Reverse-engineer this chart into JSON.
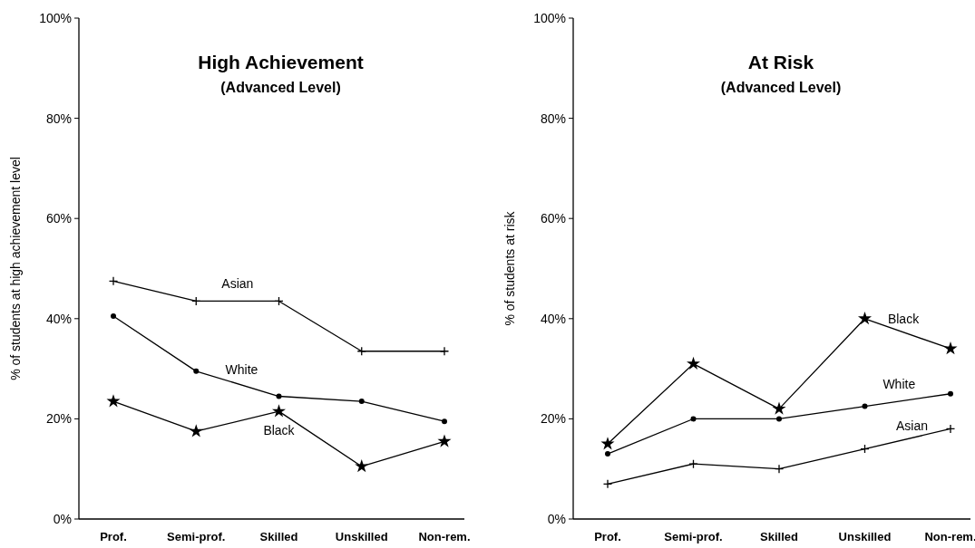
{
  "chart_data": [
    {
      "type": "line",
      "title": "High Achievement",
      "subtitle": "(Advanced Level)",
      "ylabel": "% of students at high achievement level",
      "categories": [
        "Prof.",
        "Semi-prof.",
        "Skilled",
        "Unskilled",
        "Non-rem."
      ],
      "ylim": [
        0,
        100
      ],
      "yticks": [
        {
          "value": 0,
          "label": "0%"
        },
        {
          "value": 20,
          "label": "20%"
        },
        {
          "value": 40,
          "label": "40%"
        },
        {
          "value": 60,
          "label": "60%"
        },
        {
          "value": 80,
          "label": "80%"
        },
        {
          "value": 100,
          "label": "100%"
        }
      ],
      "grid": false,
      "series": [
        {
          "name": "Asian",
          "color": "#000000",
          "marker": "cross",
          "values": [
            47.5,
            43.5,
            43.5,
            33.5,
            33.5
          ]
        },
        {
          "name": "White",
          "color": "#000000",
          "marker": "circle",
          "values": [
            40.5,
            29.5,
            24.5,
            23.5,
            19.5
          ]
        },
        {
          "name": "Black",
          "color": "#000000",
          "marker": "star",
          "values": [
            23.5,
            17.5,
            21.5,
            10.5,
            15.5
          ]
        }
      ]
    },
    {
      "type": "line",
      "title": "At Risk",
      "subtitle": "(Advanced Level)",
      "ylabel": "% of students at risk",
      "categories": [
        "Prof.",
        "Semi-prof.",
        "Skilled",
        "Unskilled",
        "Non-rem."
      ],
      "ylim": [
        0,
        100
      ],
      "yticks": [
        {
          "value": 0,
          "label": "0%"
        },
        {
          "value": 20,
          "label": "20%"
        },
        {
          "value": 40,
          "label": "40%"
        },
        {
          "value": 60,
          "label": "60%"
        },
        {
          "value": 80,
          "label": "80%"
        },
        {
          "value": 100,
          "label": "100%"
        }
      ],
      "grid": false,
      "series": [
        {
          "name": "Black",
          "color": "#000000",
          "marker": "star",
          "values": [
            15,
            31,
            22,
            40,
            34
          ]
        },
        {
          "name": "White",
          "color": "#000000",
          "marker": "circle",
          "values": [
            13,
            20,
            20,
            22.5,
            25
          ]
        },
        {
          "name": "Asian",
          "color": "#000000",
          "marker": "cross",
          "values": [
            7,
            11,
            10,
            14,
            18
          ]
        }
      ]
    }
  ]
}
